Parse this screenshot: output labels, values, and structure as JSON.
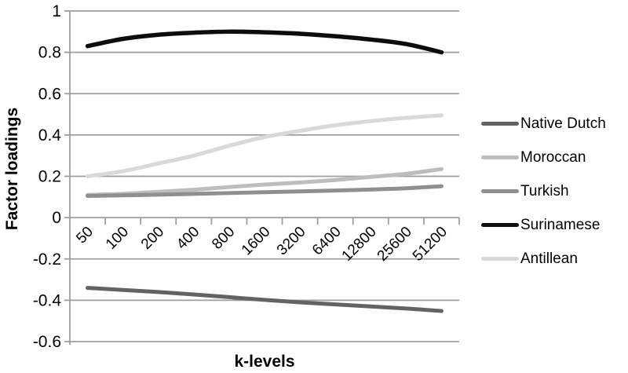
{
  "chart_data": {
    "type": "line",
    "title": "",
    "xlabel": "k-levels",
    "ylabel": "Factor loadings",
    "categories": [
      "50",
      "100",
      "200",
      "400",
      "800",
      "1600",
      "3200",
      "6400",
      "12800",
      "25600",
      "51200"
    ],
    "series": [
      {
        "name": "Native Dutch",
        "color": "#636363",
        "values": [
          -0.34,
          -0.35,
          -0.36,
          -0.372,
          -0.385,
          -0.398,
          -0.41,
          -0.42,
          -0.43,
          -0.44,
          -0.452
        ]
      },
      {
        "name": "Moroccan",
        "color": "#bdbdbd",
        "values": [
          0.11,
          0.115,
          0.125,
          0.135,
          0.148,
          0.16,
          0.17,
          0.182,
          0.197,
          0.212,
          0.235
        ]
      },
      {
        "name": "Turkish",
        "color": "#8f8f8f",
        "values": [
          0.105,
          0.108,
          0.111,
          0.115,
          0.119,
          0.123,
          0.127,
          0.131,
          0.136,
          0.142,
          0.152
        ]
      },
      {
        "name": "Surinamese",
        "color": "#0d0d0d",
        "values": [
          0.83,
          0.865,
          0.885,
          0.895,
          0.9,
          0.897,
          0.89,
          0.878,
          0.862,
          0.84,
          0.8
        ]
      },
      {
        "name": "Antillean",
        "color": "#d9d9d9",
        "values": [
          0.2,
          0.225,
          0.262,
          0.3,
          0.348,
          0.39,
          0.42,
          0.447,
          0.467,
          0.483,
          0.495
        ]
      }
    ],
    "ylim": [
      -0.6,
      1.0
    ],
    "ytick_step": 0.2,
    "ytick_labels": [
      "1",
      "0.8",
      "0.6",
      "0.4",
      "0.2",
      "0",
      "-0.2",
      "-0.4",
      "-0.6"
    ],
    "grid": "horizontal-only",
    "legend_position": "right"
  },
  "styles": {
    "grid_color": "#9e9e9e",
    "axis_color": "#9e9e9e",
    "text_color": "#000000",
    "background": "#ffffff"
  }
}
